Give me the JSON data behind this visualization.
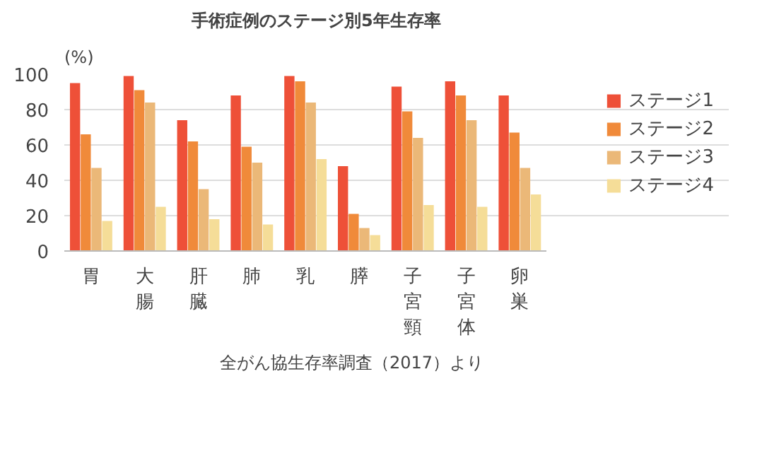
{
  "chart_data": {
    "type": "bar",
    "title": "手術症例のステージ別5年生存率",
    "ylabel": "(%)",
    "categories": [
      "胃",
      "大腸",
      "肝臓",
      "肺",
      "乳",
      "膵",
      "子宮頸",
      "子宮体",
      "卵巣"
    ],
    "series": [
      {
        "name": "ステージ1",
        "color": "#ee5038",
        "values": [
          95,
          99,
          74,
          88,
          99,
          48,
          93,
          96,
          88
        ]
      },
      {
        "name": "ステージ2",
        "color": "#f08a3a",
        "values": [
          66,
          91,
          62,
          59,
          96,
          21,
          79,
          88,
          67
        ]
      },
      {
        "name": "ステージ3",
        "color": "#ebb878",
        "values": [
          47,
          84,
          35,
          50,
          84,
          13,
          64,
          74,
          47
        ]
      },
      {
        "name": "ステージ4",
        "color": "#f5dd98",
        "values": [
          17,
          25,
          18,
          15,
          52,
          9,
          26,
          25,
          32
        ]
      }
    ],
    "ylim": [
      0,
      100
    ],
    "yticks": [
      0,
      20,
      40,
      60,
      80,
      100
    ],
    "grid": "y",
    "legend": "right",
    "annotations": [
      "全がん協生存率調査（2017）より"
    ]
  }
}
